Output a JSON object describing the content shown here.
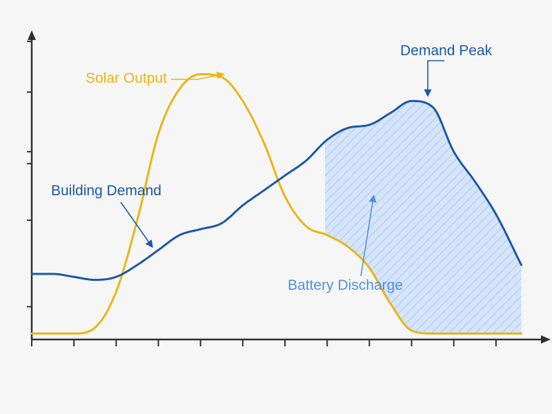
{
  "chart_data": {
    "type": "line",
    "title": "",
    "xlabel": "",
    "ylabel": "",
    "xlim": [
      0,
      12
    ],
    "ylim": [
      0,
      10
    ],
    "x_ticks": [
      0,
      1,
      2,
      3,
      4,
      5,
      6,
      7,
      8,
      9,
      10,
      11
    ],
    "y_ticks": [
      1.1,
      4,
      5.9,
      6.3,
      8.3,
      10
    ],
    "grid": false,
    "legend": "none",
    "series": [
      {
        "name": "Solar Output",
        "color": "#e8b614",
        "x": [
          0,
          1,
          1.5,
          2,
          2.5,
          3,
          3.5,
          4,
          4.5,
          5,
          5.5,
          6,
          6.5,
          7,
          7.5,
          8,
          8.5,
          9,
          9.5,
          10,
          11,
          11.6
        ],
        "values": [
          0.2,
          0.2,
          0.4,
          1.6,
          4.0,
          6.9,
          8.4,
          8.9,
          8.8,
          8.0,
          6.6,
          4.8,
          3.8,
          3.5,
          3.1,
          2.4,
          1.2,
          0.3,
          0.2,
          0.2,
          0.2,
          0.2
        ]
      },
      {
        "name": "Building Demand",
        "color": "#1a58a6",
        "x": [
          0,
          0.5,
          1,
          1.5,
          2,
          2.5,
          3,
          3.5,
          4,
          4.5,
          5,
          5.5,
          6,
          6.5,
          7,
          7.5,
          8,
          8.5,
          9,
          9.5,
          10,
          10.5,
          11,
          11.6
        ],
        "values": [
          2.2,
          2.2,
          2.1,
          2.0,
          2.1,
          2.5,
          3.0,
          3.5,
          3.7,
          3.9,
          4.5,
          5.0,
          5.5,
          6.0,
          6.7,
          7.1,
          7.2,
          7.6,
          8.0,
          7.8,
          6.3,
          5.3,
          4.2,
          2.5
        ]
      }
    ],
    "shaded_region": {
      "name": "Battery Discharge",
      "x_start": 6.95,
      "x_end": 11.6,
      "between": [
        "Building Demand",
        "Solar Output"
      ],
      "color": "#4f8fe6"
    },
    "annotations": [
      {
        "text": "Solar Output",
        "target_series": "Solar Output",
        "target_x": 4.6,
        "color": "#e8b614"
      },
      {
        "text": "Building Demand",
        "target_series": "Building Demand",
        "target_x": 2.95,
        "color": "#1a58a6"
      },
      {
        "text": "Demand Peak",
        "target_series": "Building Demand",
        "target_x": 9.0,
        "color": "#1a58a6"
      },
      {
        "text": "Battery Discharge",
        "target_series": "shaded_region",
        "target_x": 8.1,
        "color": "#4f8fe6"
      }
    ]
  }
}
